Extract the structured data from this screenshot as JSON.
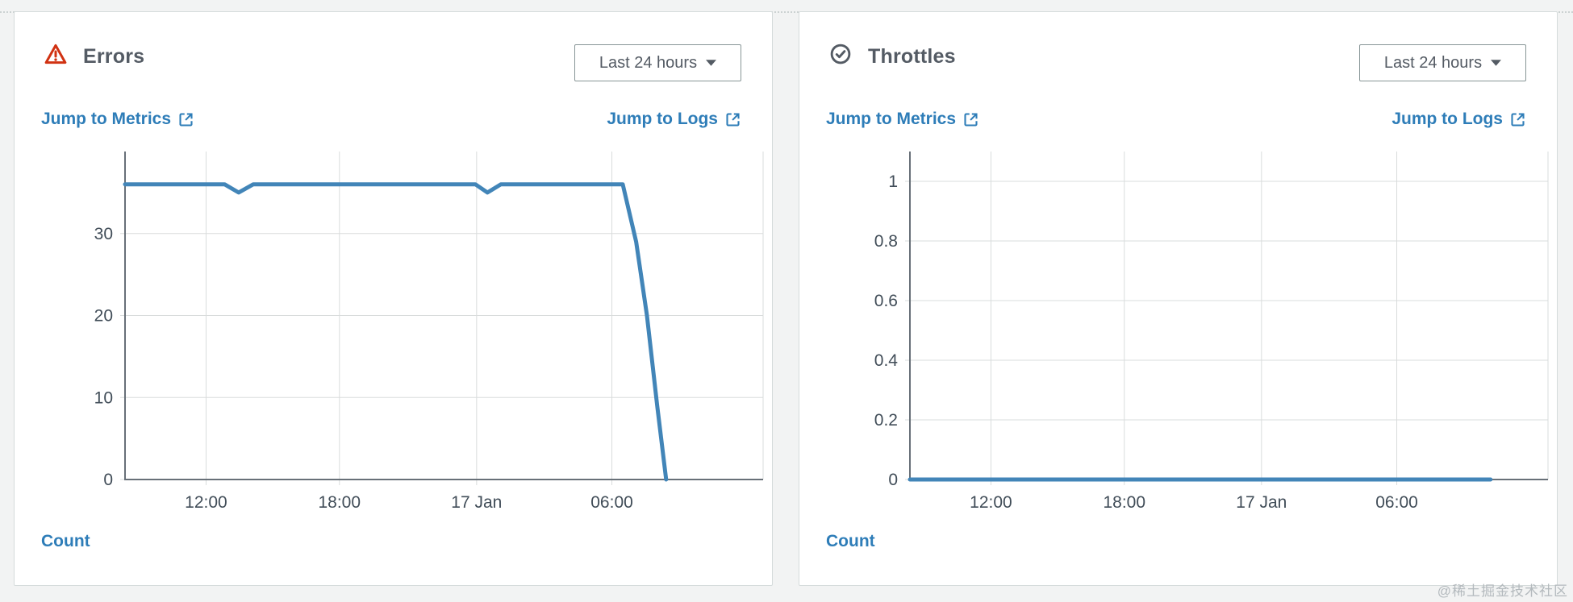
{
  "page": {
    "watermark": "@稀土掘金技术社区"
  },
  "colors": {
    "accent_link": "#2e7db8",
    "chart_line": "#4285b8",
    "error_red": "#d13212",
    "heading_gray": "#545b64",
    "page_bg": "#f2f3f3",
    "card_border": "#d5dbdb",
    "axis": "#687078",
    "grid": "#d9dcdc",
    "tick_label": "#414d58"
  },
  "panels": [
    {
      "id": "errors",
      "icon": "alert-triangle-icon",
      "title": "Errors",
      "range_label": "Last 24 hours",
      "jump_to_metrics": "Jump to Metrics",
      "jump_to_logs": "Jump to Logs",
      "legend": "Count"
    },
    {
      "id": "throttles",
      "icon": "check-circle-icon",
      "title": "Throttles",
      "range_label": "Last 24 hours",
      "jump_to_metrics": "Jump to Metrics",
      "jump_to_logs": "Jump to Logs",
      "legend": "Count"
    }
  ],
  "chart_data": [
    {
      "type": "line",
      "title": "Errors",
      "ylabel": "Count",
      "legend": [
        "Count"
      ],
      "legend_position": "bottom-left",
      "grid": true,
      "ylim": [
        0,
        40
      ],
      "yticks": [
        {
          "v": 0,
          "label": "0"
        },
        {
          "v": 10,
          "label": "10"
        },
        {
          "v": 20,
          "label": "20"
        },
        {
          "v": 30,
          "label": "30"
        }
      ],
      "x_window": "Last 24 hours",
      "x_encoding": "fraction of 24h plot width",
      "xticks": [
        {
          "pos": 0.127,
          "label": "12:00"
        },
        {
          "pos": 0.336,
          "label": "18:00"
        },
        {
          "pos": 0.551,
          "label": "17 Jan"
        },
        {
          "pos": 0.763,
          "label": "06:00"
        }
      ],
      "series": [
        {
          "name": "Count",
          "color": "#4285b8",
          "points": [
            [
              0.0,
              36
            ],
            [
              0.156,
              36
            ],
            [
              0.178,
              35
            ],
            [
              0.201,
              36
            ],
            [
              0.549,
              36
            ],
            [
              0.568,
              35
            ],
            [
              0.589,
              36
            ],
            [
              0.78,
              36
            ],
            [
              0.801,
              29
            ],
            [
              0.818,
              20
            ],
            [
              0.834,
              9
            ],
            [
              0.848,
              0
            ]
          ]
        }
      ]
    },
    {
      "type": "line",
      "title": "Throttles",
      "ylabel": "Count",
      "legend": [
        "Count"
      ],
      "legend_position": "bottom-left",
      "grid": true,
      "ylim": [
        0,
        1.1
      ],
      "yticks": [
        {
          "v": 0,
          "label": "0"
        },
        {
          "v": 0.2,
          "label": "0.2"
        },
        {
          "v": 0.4,
          "label": "0.4"
        },
        {
          "v": 0.6,
          "label": "0.6"
        },
        {
          "v": 0.8,
          "label": "0.8"
        },
        {
          "v": 1,
          "label": "1"
        }
      ],
      "x_window": "Last 24 hours",
      "x_encoding": "fraction of 24h plot width",
      "xticks": [
        {
          "pos": 0.127,
          "label": "12:00"
        },
        {
          "pos": 0.336,
          "label": "18:00"
        },
        {
          "pos": 0.551,
          "label": "17 Jan"
        },
        {
          "pos": 0.763,
          "label": "06:00"
        }
      ],
      "series": [
        {
          "name": "Count",
          "color": "#4285b8",
          "points": [
            [
              0.0,
              0
            ],
            [
              0.91,
              0
            ]
          ]
        }
      ]
    }
  ]
}
